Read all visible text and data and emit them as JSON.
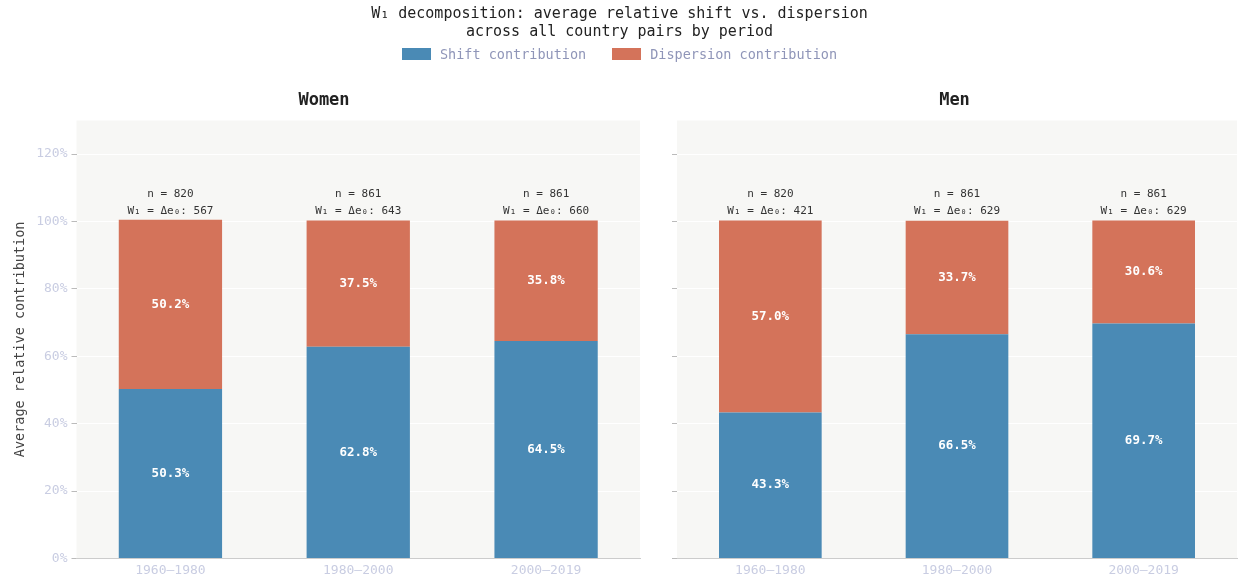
{
  "chart_data": [
    {
      "type": "bar",
      "title": "W₁ decomposition: average relative shift vs. dispersion\nacross all country pairs by period",
      "subtitle": "Women",
      "ylabel": "Average relative contribution",
      "categories": [
        "1960–1980",
        "1980–2000",
        "2000–2019"
      ],
      "stacked": true,
      "series": [
        {
          "name": "Shift contribution",
          "color": "#4a8ab5",
          "values": [
            50.3,
            62.8,
            64.5
          ],
          "value_labels": [
            "50.3%",
            "62.8%",
            "64.5%"
          ]
        },
        {
          "name": "Dispersion contribution",
          "color": "#d4735a",
          "values": [
            50.2,
            37.5,
            35.8
          ],
          "value_labels": [
            "50.2%",
            "37.5%",
            "35.8%"
          ]
        }
      ],
      "ylim": [
        0,
        130
      ],
      "yticks": [
        {
          "value": 0,
          "label": "0%"
        },
        {
          "value": 20,
          "label": "20%"
        },
        {
          "value": 40,
          "label": "40%"
        },
        {
          "value": 60,
          "label": "60%"
        },
        {
          "value": 80,
          "label": "80%"
        },
        {
          "value": 100,
          "label": "100%"
        },
        {
          "value": 120,
          "label": "120%"
        }
      ],
      "grid": "y",
      "legend": "top",
      "annotations": [
        {
          "text": "n = 820\nW₁ = Δe₀: 567",
          "x": "1960–1980",
          "y": 100
        },
        {
          "text": "n = 861\nW₁ = Δe₀: 643",
          "x": "1980–2000",
          "y": 100
        },
        {
          "text": "n = 861\nW₁ = Δe₀: 660",
          "x": "2000–2019",
          "y": 100
        }
      ]
    },
    {
      "type": "bar",
      "subtitle": "Men",
      "categories": [
        "1960–1980",
        "1980–2000",
        "2000–2019"
      ],
      "stacked": true,
      "series": [
        {
          "color": "#4a8ab5",
          "values": [
            43.3,
            66.5,
            69.7
          ],
          "value_labels": [
            "43.3%",
            "66.5%",
            "69.7%"
          ]
        },
        {
          "color": "#d4735a",
          "values": [
            57.0,
            33.7,
            30.6
          ],
          "value_labels": [
            "57.0%",
            "33.7%",
            "30.6%"
          ]
        }
      ],
      "ylim": [
        0,
        130
      ],
      "yticks": [
        {
          "value": 0,
          "label": null
        },
        {
          "value": 20,
          "label": null
        },
        {
          "value": 40,
          "label": null
        },
        {
          "value": 60,
          "label": null
        },
        {
          "value": 80,
          "label": null
        },
        {
          "value": 100,
          "label": null
        },
        {
          "value": 120,
          "label": null
        }
      ],
      "grid": "y",
      "tick_labels": "x",
      "annotations": [
        {
          "text": "n = 820\nW₁ = Δe₀: 421",
          "x": "1960–1980",
          "y": 100
        },
        {
          "text": "n = 861\nW₁ = Δe₀: 629",
          "x": "1980–2000",
          "y": 100
        },
        {
          "text": "n = 861\nW₁ = Δe₀: 629",
          "x": "2000–2019",
          "y": 100
        }
      ]
    }
  ]
}
